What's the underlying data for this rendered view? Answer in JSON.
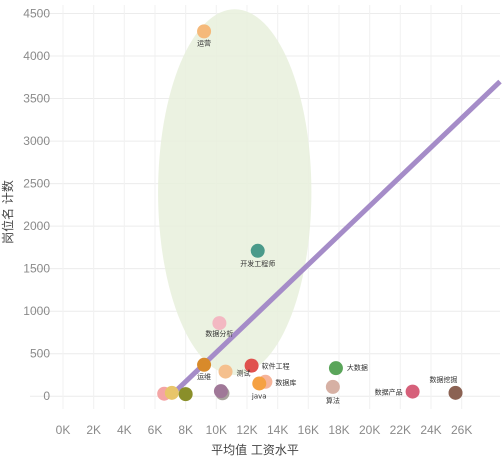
{
  "chart_data": {
    "type": "scatter",
    "title": "",
    "xlabel": "平均值 工资水平",
    "ylabel": "岗位名 计数",
    "xlim": [
      0,
      28500
    ],
    "ylim": [
      -150,
      4600
    ],
    "xticks": [
      0,
      2000,
      4000,
      6000,
      8000,
      10000,
      12000,
      14000,
      16000,
      18000,
      20000,
      22000,
      24000,
      26000
    ],
    "xtick_labels": [
      "0K",
      "2K",
      "4K",
      "6K",
      "8K",
      "10K",
      "12K",
      "14K",
      "16K",
      "18K",
      "20K",
      "22K",
      "24K",
      "26K"
    ],
    "yticks": [
      0,
      500,
      1000,
      1500,
      2000,
      2500,
      3000,
      3500,
      4000,
      4500
    ],
    "ytick_labels": [
      "0",
      "500",
      "1000",
      "1500",
      "2000",
      "2500",
      "3000",
      "3500",
      "4000",
      "4500"
    ],
    "grid": true,
    "points": [
      {
        "x": 9200,
        "y": 4290,
        "label": "运营",
        "color": "#f5b97a"
      },
      {
        "x": 12700,
        "y": 1710,
        "label": "开发工程师",
        "color": "#4a9a8a"
      },
      {
        "x": 10200,
        "y": 860,
        "label": "数据分析",
        "color": "#f3b8c2"
      },
      {
        "x": 9200,
        "y": 370,
        "label": "运维",
        "color": "#d88a2a"
      },
      {
        "x": 12300,
        "y": 360,
        "label": "软件工程",
        "color": "#e0524e"
      },
      {
        "x": 10600,
        "y": 290,
        "label": "测试",
        "color": "#f5c08e"
      },
      {
        "x": 17800,
        "y": 330,
        "label": "大数据",
        "color": "#5aa55a"
      },
      {
        "x": 13200,
        "y": 170,
        "label": "数据库",
        "color": "#f6b49a"
      },
      {
        "x": 12800,
        "y": 150,
        "label": "java",
        "color": "#f5a142"
      },
      {
        "x": 17600,
        "y": 110,
        "label": "算法",
        "color": "#d6b0a4"
      },
      {
        "x": 22800,
        "y": 55,
        "label": "数据产品",
        "color": "#d6607a"
      },
      {
        "x": 25600,
        "y": 40,
        "label": "数据挖掘",
        "color": "#8b6253"
      },
      {
        "x": 6600,
        "y": 30,
        "label": "",
        "color": "#f4a5a5"
      },
      {
        "x": 7100,
        "y": 40,
        "label": "",
        "color": "#e8c56a"
      },
      {
        "x": 8000,
        "y": 25,
        "label": "",
        "color": "#8a8f2a"
      },
      {
        "x": 10400,
        "y": 35,
        "label": "",
        "color": "#a9a39d"
      },
      {
        "x": 10300,
        "y": 60,
        "label": "",
        "color": "#a07898"
      }
    ],
    "trend_line": {
      "x": [
        7000,
        28500
      ],
      "y": [
        0,
        3700
      ],
      "color": "#a58cc8"
    },
    "highlight_ellipse": {
      "center": [
        11200,
        2400
      ],
      "radii": [
        5000,
        2150
      ],
      "color": "#e8f0dc"
    }
  }
}
